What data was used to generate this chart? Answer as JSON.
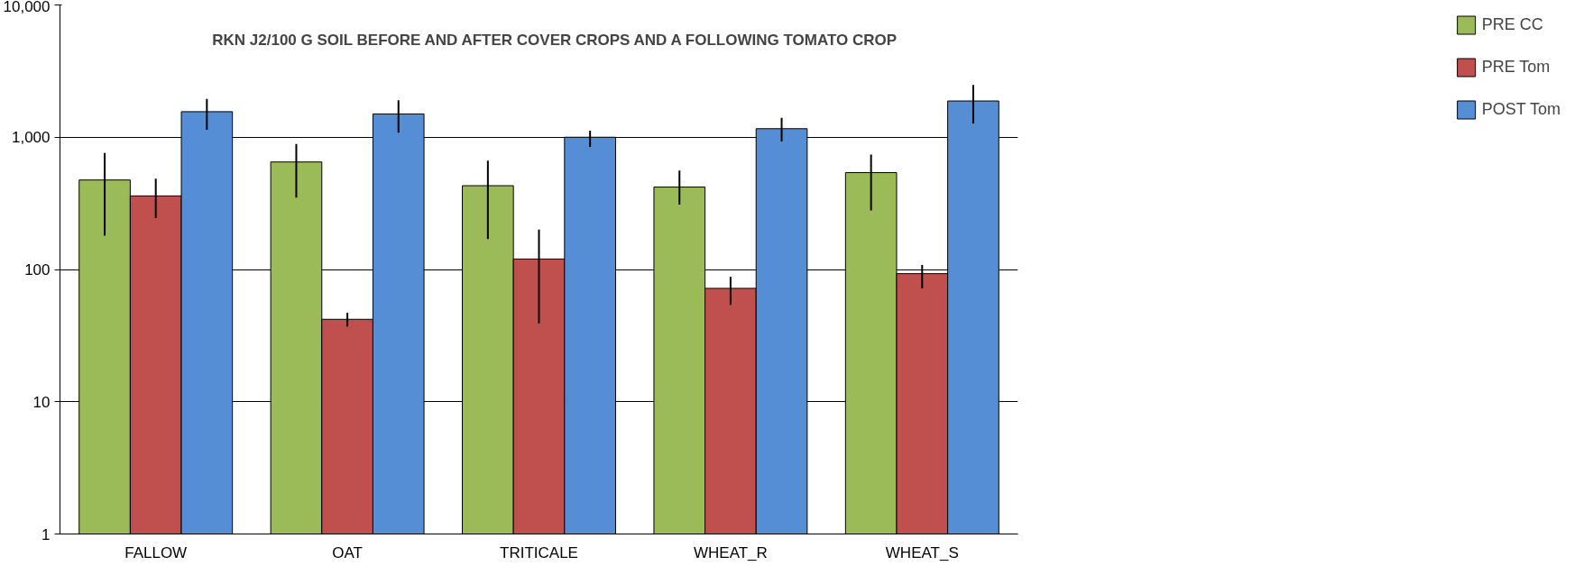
{
  "chart_data": {
    "type": "bar",
    "title": "RKN J2/100 G SOIL BEFORE  AND AFTER COVER CROPS AND A FOLLOWING TOMATO CROP",
    "categories": [
      "FALLOW",
      "OAT",
      "TRITICALE",
      "WHEAT_R",
      "WHEAT_S"
    ],
    "series": [
      {
        "name": "PRE CC",
        "color": "#9bbb59",
        "values": [
          475,
          650,
          430,
          420,
          540
        ],
        "errors": [
          [
            180,
            760
          ],
          [
            350,
            890
          ],
          [
            170,
            665
          ],
          [
            310,
            560
          ],
          [
            280,
            740
          ]
        ]
      },
      {
        "name": "PRE Tom",
        "color": "#c0504d",
        "values": [
          360,
          42,
          120,
          72,
          93
        ],
        "errors": [
          [
            245,
            485
          ],
          [
            37,
            47
          ],
          [
            39,
            200
          ],
          [
            54,
            88
          ],
          [
            72,
            108
          ]
        ]
      },
      {
        "name": "POST Tom",
        "color": "#558ed5",
        "values": [
          1560,
          1500,
          1000,
          1160,
          1880
        ],
        "errors": [
          [
            1140,
            1950
          ],
          [
            1080,
            1900
          ],
          [
            845,
            1120
          ],
          [
            930,
            1400
          ],
          [
            1270,
            2480
          ]
        ]
      }
    ],
    "log": true,
    "ylim": [
      1,
      10000
    ],
    "yticks": [
      1,
      10,
      100,
      {
        "value": 1000,
        "label": "1,000"
      },
      {
        "value": 10000,
        "label": "10,000"
      }
    ],
    "grid": "y",
    "legend": "right"
  }
}
